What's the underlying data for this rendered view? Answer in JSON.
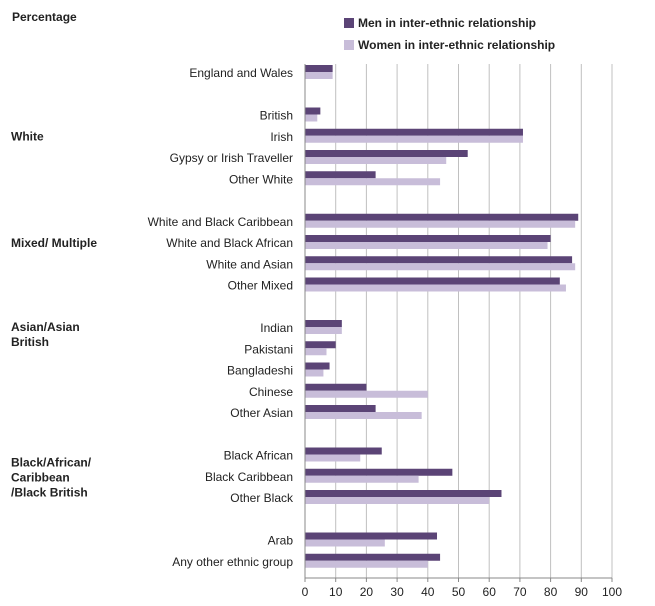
{
  "colors": {
    "men": "#5b4476",
    "women": "#c8bdd9",
    "grid": "#c0c0c0",
    "axis": "#888888"
  },
  "chart_data": {
    "type": "bar",
    "orientation": "horizontal",
    "title": "",
    "ylabel": "Percentage",
    "xlim": [
      0,
      100
    ],
    "xticks": [
      "0",
      "10",
      "20",
      "30",
      "40",
      "50",
      "60",
      "70",
      "80",
      "90",
      "100"
    ],
    "grid": true,
    "legend": "top",
    "groups": [
      {
        "label": "",
        "items": [
          "England and Wales"
        ]
      },
      {
        "label": "White",
        "items": [
          "British",
          "Irish",
          "Gypsy or Irish Traveller",
          "Other White"
        ]
      },
      {
        "label": "Mixed/ Multiple",
        "items": [
          "White and Black Caribbean",
          "White and Black African",
          "White and Asian",
          "Other Mixed"
        ]
      },
      {
        "label": "Asian/Asian\nBritish",
        "items": [
          "Indian",
          "Pakistani",
          "Bangladeshi",
          "Chinese",
          "Other Asian"
        ]
      },
      {
        "label": "Black/African/\nCaribbean\n/Black British",
        "items": [
          "Black African",
          "Black Caribbean",
          "Other Black"
        ]
      },
      {
        "label": "",
        "items": [
          "Arab",
          "Any other ethnic group"
        ]
      }
    ],
    "categories": [
      "England and Wales",
      "British",
      "Irish",
      "Gypsy or Irish Traveller",
      "Other White",
      "White and Black Caribbean",
      "White and Black African",
      "White and Asian",
      "Other Mixed",
      "Indian",
      "Pakistani",
      "Bangladeshi",
      "Chinese",
      "Other Asian",
      "Black African",
      "Black Caribbean",
      "Other Black",
      "Arab",
      "Any other ethnic group"
    ],
    "series": [
      {
        "name": "Men in inter-ethnic  relationship",
        "values": [
          9,
          5,
          71,
          53,
          23,
          89,
          80,
          87,
          83,
          12,
          10,
          8,
          20,
          23,
          25,
          48,
          64,
          43,
          44
        ]
      },
      {
        "name": "Women in inter-ethnic  relationship",
        "values": [
          9,
          4,
          71,
          46,
          44,
          88,
          79,
          88,
          85,
          12,
          7,
          6,
          40,
          38,
          18,
          37,
          60,
          26,
          40
        ]
      }
    ]
  }
}
